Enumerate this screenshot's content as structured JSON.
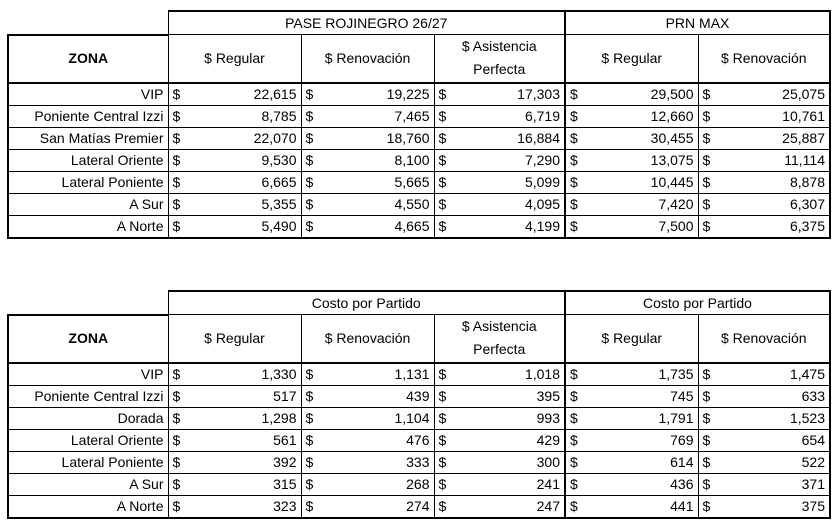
{
  "tables": [
    {
      "groups": [
        "PASE ROJINEGRO 26/27",
        "PRN MAX"
      ],
      "zone_header": "ZONA",
      "columns": [
        "$ Regular",
        "$ Renovación",
        "$ Asistencia Perfecta",
        "$ Regular",
        "$ Renovación"
      ],
      "currency": "$",
      "rows": [
        {
          "zone": "VIP",
          "values": [
            "22,615",
            "19,225",
            "17,303",
            "29,500",
            "25,075"
          ]
        },
        {
          "zone": "Poniente Central Izzi",
          "values": [
            "8,785",
            "7,465",
            "6,719",
            "12,660",
            "10,761"
          ]
        },
        {
          "zone": "San Matías Premier",
          "values": [
            "22,070",
            "18,760",
            "16,884",
            "30,455",
            "25,887"
          ]
        },
        {
          "zone": "Lateral Oriente",
          "values": [
            "9,530",
            "8,100",
            "7,290",
            "13,075",
            "11,114"
          ]
        },
        {
          "zone": "Lateral Poniente",
          "values": [
            "6,665",
            "5,665",
            "5,099",
            "10,445",
            "8,878"
          ]
        },
        {
          "zone": "A Sur",
          "values": [
            "5,355",
            "4,550",
            "4,095",
            "7,420",
            "6,307"
          ]
        },
        {
          "zone": "A Norte",
          "values": [
            "5,490",
            "4,665",
            "4,199",
            "7,500",
            "6,375"
          ]
        }
      ]
    },
    {
      "groups": [
        "Costo por Partido",
        "Costo por Partido"
      ],
      "zone_header": "ZONA",
      "columns": [
        "$ Regular",
        "$ Renovación",
        "$ Asistencia Perfecta",
        "$ Regular",
        "$ Renovación"
      ],
      "currency": "$",
      "rows": [
        {
          "zone": "VIP",
          "values": [
            "1,330",
            "1,131",
            "1,018",
            "1,735",
            "1,475"
          ]
        },
        {
          "zone": "Poniente Central Izzi",
          "values": [
            "517",
            "439",
            "395",
            "745",
            "633"
          ]
        },
        {
          "zone": "Dorada",
          "values": [
            "1,298",
            "1,104",
            "993",
            "1,791",
            "1,523"
          ]
        },
        {
          "zone": "Lateral Oriente",
          "values": [
            "561",
            "476",
            "429",
            "769",
            "654"
          ]
        },
        {
          "zone": "Lateral Poniente",
          "values": [
            "392",
            "333",
            "300",
            "614",
            "522"
          ]
        },
        {
          "zone": "A Sur",
          "values": [
            "315",
            "268",
            "241",
            "436",
            "371"
          ]
        },
        {
          "zone": "A Norte",
          "values": [
            "323",
            "274",
            "247",
            "441",
            "375"
          ]
        }
      ]
    }
  ]
}
